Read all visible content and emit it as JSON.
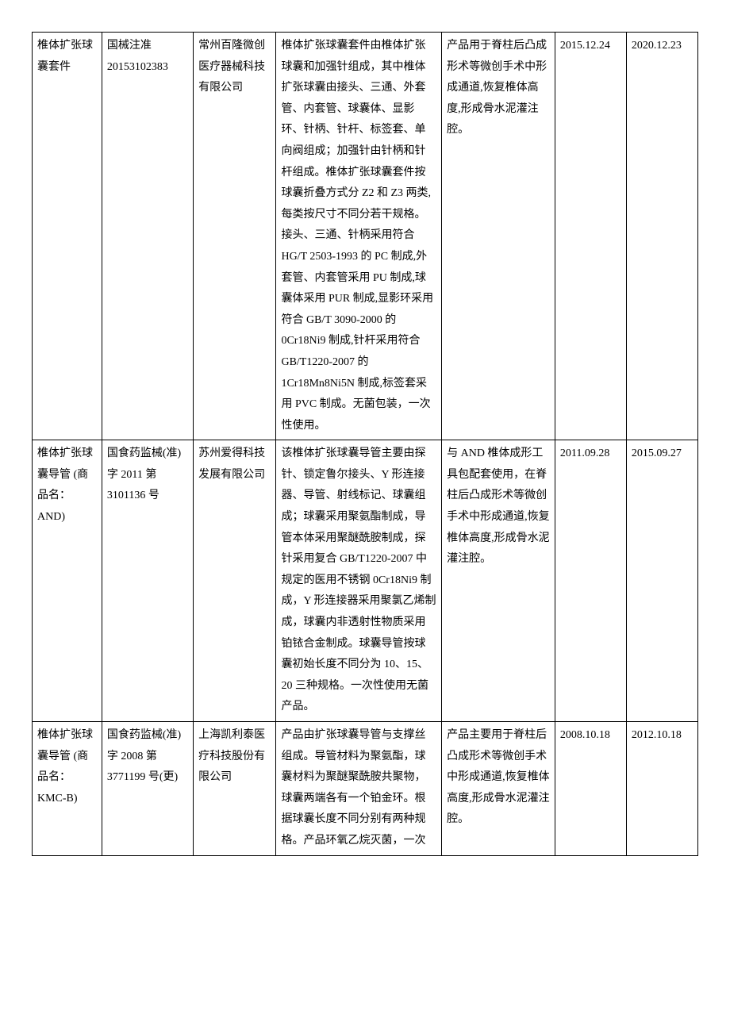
{
  "table": {
    "rows": [
      {
        "name": "椎体扩张球囊套件",
        "reg": "国械注准 20153102383",
        "company": "常州百隆微创医疗器械科技有限公司",
        "desc": "椎体扩张球囊套件由椎体扩张球囊和加强针组成，其中椎体扩张球囊由接头、三通、外套管、内套管、球囊体、显影环、针柄、针杆、标签套、单向阀组成；加强针由针柄和针杆组成。椎体扩张球囊套件按球囊折叠方式分 Z2 和 Z3 两类,每类按尺寸不同分若干规格。接头、三通、针柄采用符合 HG/T 2503-1993 的 PC 制成,外套管、内套管采用 PU 制成,球囊体采用 PUR 制成,显影环采用符合 GB/T 3090-2000 的 0Cr18Ni9 制成,针杆采用符合 GB/T1220-2007 的 1Cr18Mn8Ni5N 制成,标签套采用 PVC 制成。无菌包装，一次性使用。",
        "use": "产品用于脊柱后凸成形术等微创手术中形成通道,恢复椎体高度,形成骨水泥灌注腔。",
        "date1": "2015.12.24",
        "date2": "2020.12.23"
      },
      {
        "name": "椎体扩张球囊导管 (商品名：AND)",
        "reg": "国食药监械(准)字 2011 第 3101136 号",
        "company": "苏州爱得科技发展有限公司",
        "desc": "该椎体扩张球囊导管主要由探针、锁定鲁尔接头、Y 形连接器、导管、射线标记、球囊组成；球囊采用聚氨酯制成，导管本体采用聚醚酰胺制成，探针采用复合 GB/T1220-2007 中规定的医用不锈钢 0Cr18Ni9 制成，Y 形连接器采用聚氯乙烯制成，球囊内非透射性物质采用铂铱合金制成。球囊导管按球囊初始长度不同分为 10、15、20 三种规格。一次性使用无菌产品。",
        "use": "与 AND 椎体成形工具包配套使用，在脊柱后凸成形术等微创手术中形成通道,恢复椎体高度,形成骨水泥灌注腔。",
        "date1": "2011.09.28",
        "date2": "2015.09.27"
      },
      {
        "name": "椎体扩张球囊导管 (商品名：KMC-B)",
        "reg": "国食药监械(准)字 2008 第 3771199 号(更)",
        "company": "上海凯利泰医疗科技股份有限公司",
        "desc": "产品由扩张球囊导管与支撑丝组成。导管材料为聚氨酯，球囊材料为聚醚聚酰胺共聚物，球囊两端各有一个铂金环。根据球囊长度不同分别有两种规格。产品环氧乙烷灭菌，一次",
        "use": "产品主要用于脊柱后凸成形术等微创手术中形成通道,恢复椎体高度,形成骨水泥灌注腔。",
        "date1": "2008.10.18",
        "date2": "2012.10.18"
      }
    ]
  }
}
